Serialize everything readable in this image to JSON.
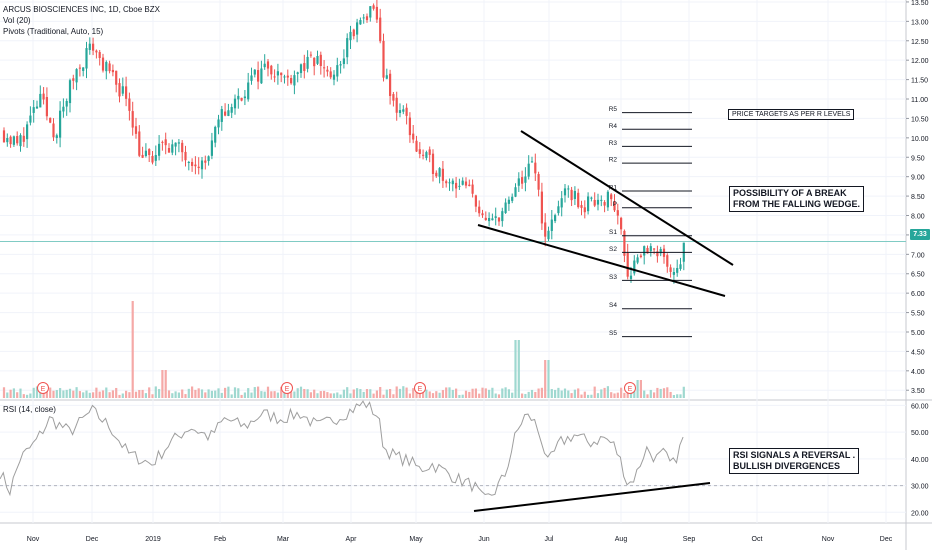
{
  "header": {
    "symbol_line": "ARCUS BIOSCIENCES INC, 1D, Cboe BZX",
    "volume_line": "Vol (20)",
    "pivots_line": "Pivots (Traditional, Auto, 15)",
    "rsi_line": "RSI (14, close)"
  },
  "current_price": "7.33",
  "annotations": {
    "price_targets": "PRICE TARGETS AS PER R LEVELS",
    "wedge_break": "POSSIBILITY OF A BREAK\nFROM THE FALLING WEDGE.",
    "rsi_reversal": "RSI SIGNALS A REVERSAL .\nBULLISH DIVERGENCES"
  },
  "earnings_marker": "E",
  "colors": {
    "up": "#26a69a",
    "down": "#ef5350",
    "pivot_line": "#131722",
    "rsi_line": "#9e9e9e",
    "price_line": "#26a69a",
    "trend_line": "#000000"
  },
  "chart_data": {
    "type": "line",
    "title": "ARCUS BIOSCIENCES INC, 1D, Cboe BZX",
    "x_axis_labels": [
      "Nov",
      "Dec",
      "2019",
      "Feb",
      "Mar",
      "Apr",
      "May",
      "Jun",
      "Jul",
      "Aug",
      "Sep",
      "Oct",
      "Nov",
      "Dec"
    ],
    "price_axis": {
      "ticks": [
        "13.50",
        "13.00",
        "12.50",
        "12.00",
        "11.50",
        "11.00",
        "10.50",
        "10.00",
        "9.50",
        "9.00",
        "8.50",
        "8.00",
        "7.50",
        "7.00",
        "6.50",
        "6.00",
        "5.50",
        "5.00",
        "4.50",
        "4.00",
        "3.50"
      ],
      "ylim": [
        3.3,
        13.55
      ]
    },
    "rsi_axis": {
      "ticks": [
        "60.00",
        "50.00",
        "40.00",
        "30.00",
        "20.00"
      ],
      "ylim": [
        16,
        62
      ],
      "reference_level": 30
    },
    "approx_close_series": {
      "name": "Close",
      "points": [
        [
          "Nov",
          10.2
        ],
        [
          "Dec",
          12.4
        ],
        [
          "Dec-mid",
          11.5
        ],
        [
          "2019",
          9.4
        ],
        [
          "Jan-mid",
          9.9
        ],
        [
          "Feb",
          10.6
        ],
        [
          "Feb-mid",
          11.6
        ],
        [
          "Mar",
          11.9
        ],
        [
          "Mar-mid",
          12.3
        ],
        [
          "Apr",
          13.3
        ],
        [
          "Apr-mid",
          10.8
        ],
        [
          "May",
          9.6
        ],
        [
          "May-mid",
          8.8
        ],
        [
          "Jun",
          7.8
        ],
        [
          "Jun-mid",
          8.6
        ],
        [
          "Jul-early",
          9.3
        ],
        [
          "Jul",
          8.1
        ],
        [
          "Jul-mid",
          8.4
        ],
        [
          "Aug",
          7.1
        ],
        [
          "Aug-late",
          7.33
        ]
      ]
    },
    "approx_rsi_series": {
      "name": "RSI",
      "points": [
        [
          "Nov",
          35
        ],
        [
          "Dec",
          58
        ],
        [
          "2019",
          38
        ],
        [
          "Feb",
          54
        ],
        [
          "Mar",
          57
        ],
        [
          "Apr",
          61
        ],
        [
          "May",
          38
        ],
        [
          "Jun",
          22
        ],
        [
          "Jun-late",
          56
        ],
        [
          "Jul",
          47
        ],
        [
          "Aug",
          30
        ],
        [
          "Aug-late",
          51
        ]
      ]
    },
    "pivot_levels": [
      {
        "label": "R5",
        "value": 10.65
      },
      {
        "label": "R4",
        "value": 10.22
      },
      {
        "label": "R3",
        "value": 9.78
      },
      {
        "label": "R2",
        "value": 9.35
      },
      {
        "label": "R1",
        "value": 8.63
      },
      {
        "label": "P",
        "value": 8.2
      },
      {
        "label": "S1",
        "value": 7.48
      },
      {
        "label": "S2",
        "value": 7.05
      },
      {
        "label": "S3",
        "value": 6.33
      },
      {
        "label": "S4",
        "value": 5.6
      },
      {
        "label": "S5",
        "value": 4.88
      }
    ],
    "volume_series": {
      "name": "Vol (20)",
      "spike_month": "Dec"
    },
    "grid": true,
    "legend": "top-left"
  }
}
